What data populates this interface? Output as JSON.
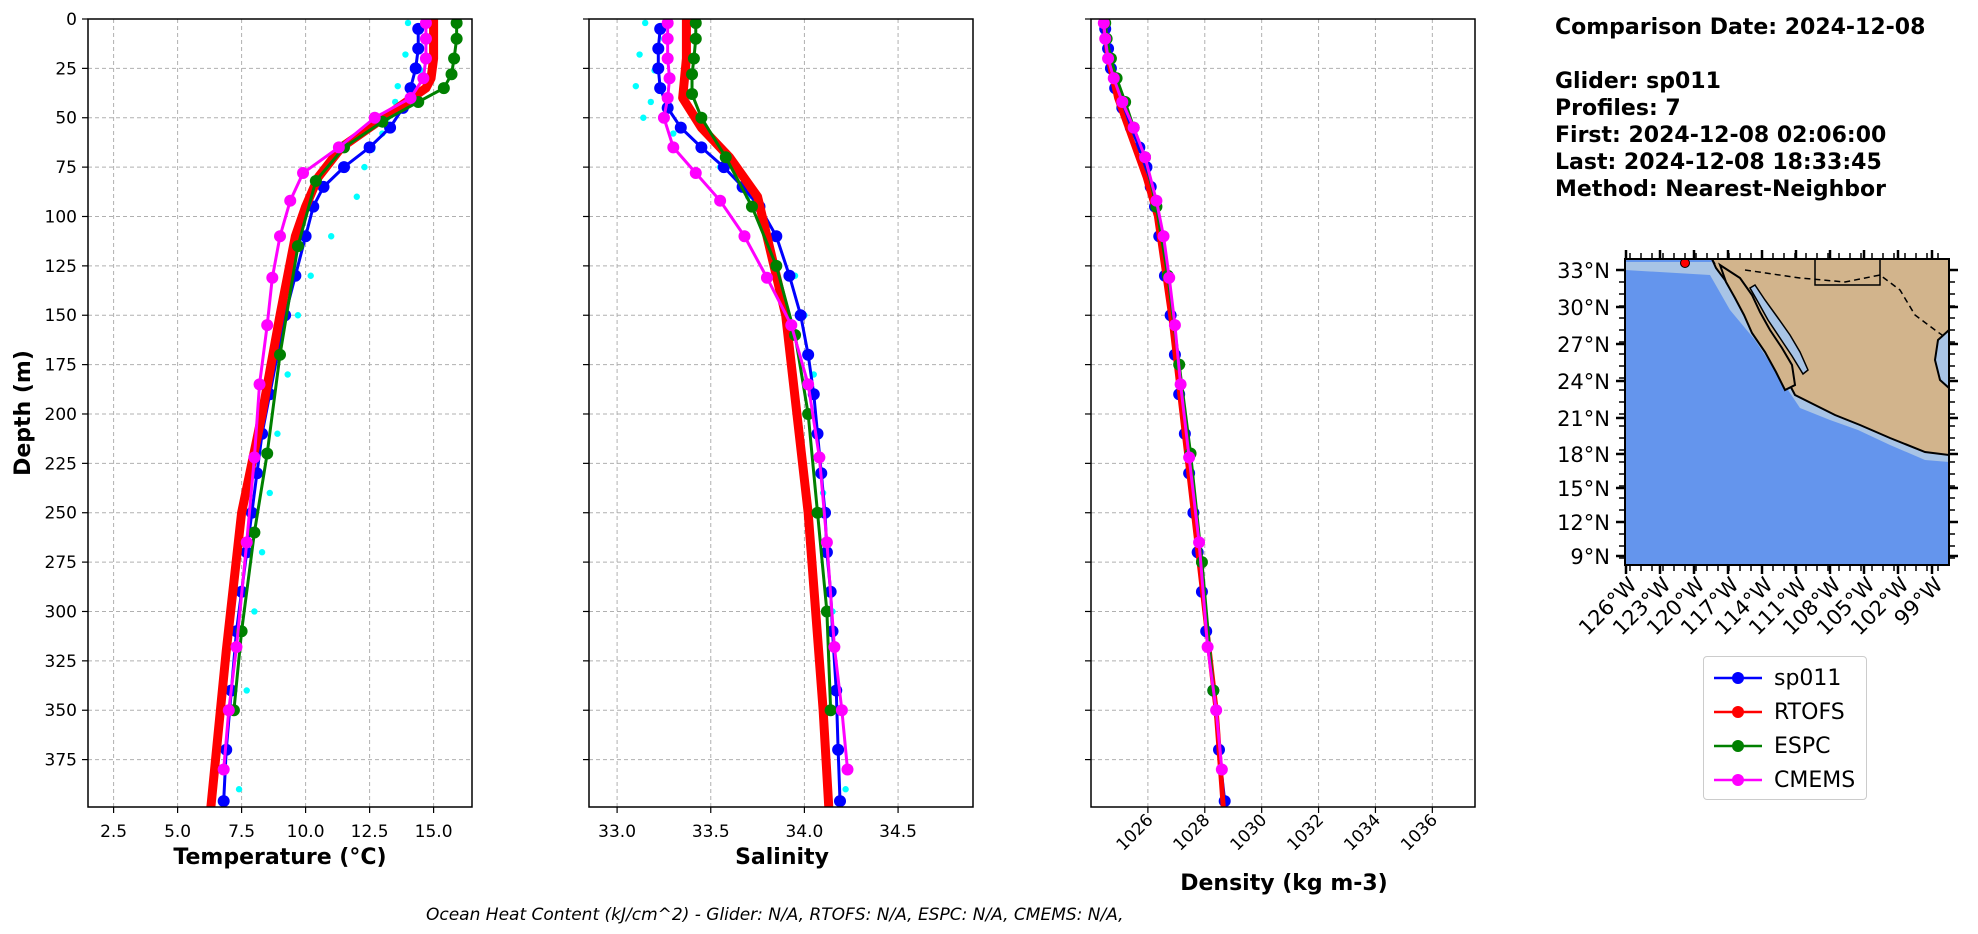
{
  "info": {
    "comparison_date": "Comparison Date: 2024-12-08",
    "glider": "Glider: sp011",
    "profiles": "Profiles: 7",
    "first": "First: 2024-12-08 02:06:00",
    "last": "Last: 2024-12-08 18:33:45",
    "method": "Method: Nearest-Neighbor"
  },
  "footer": "Ocean Heat Content (kJ/cm^2) - Glider: N/A,  RTOFS: N/A,  ESPC: N/A,  CMEMS: N/A,",
  "legend": [
    {
      "name": "sp011",
      "color": "#0000ff"
    },
    {
      "name": "RTOFS",
      "color": "#ff0000"
    },
    {
      "name": "ESPC",
      "color": "#008000"
    },
    {
      "name": "CMEMS",
      "color": "#ff00ff"
    }
  ],
  "colors": {
    "glider": "#0000ff",
    "glider_raw": "#00ffff",
    "rtofs": "#ff0000",
    "espc": "#008000",
    "cmems": "#ff00ff",
    "ocean": "#6495ed",
    "land": "#d2b48c",
    "shelf": "#a8c4e6"
  },
  "chart_data": [
    {
      "type": "line",
      "xlabel": "Temperature (°C)",
      "ylabel": "Depth (m)",
      "xlim": [
        1.5,
        16.5
      ],
      "ylim": [
        399,
        0
      ],
      "xticks": [
        2.5,
        5.0,
        7.5,
        10.0,
        12.5,
        15.0
      ],
      "xtick_labels": [
        "2.5",
        "5.0",
        "7.5",
        "10.0",
        "12.5",
        "15.0"
      ],
      "yticks": [
        0,
        25,
        50,
        75,
        100,
        125,
        150,
        175,
        200,
        225,
        250,
        275,
        300,
        325,
        350,
        375
      ],
      "grid": true,
      "series": [
        {
          "name": "sp011-raw",
          "color": "#00ffff",
          "style": "dots",
          "x": [
            14.0,
            14.7,
            13.9,
            14.5,
            13.6,
            13.5,
            13.2,
            13.0,
            12.6,
            12.3,
            12.0,
            11.0,
            10.2,
            9.7,
            9.3,
            8.9,
            8.6,
            8.3,
            8.0,
            7.7,
            7.4
          ],
          "y": [
            2,
            10,
            18,
            26,
            34,
            42,
            50,
            58,
            66,
            75,
            90,
            110,
            130,
            150,
            180,
            210,
            240,
            270,
            300,
            340,
            390
          ]
        },
        {
          "name": "sp011",
          "color": "#0000ff",
          "width": 3,
          "marker": 6,
          "x": [
            14.4,
            14.4,
            14.3,
            14.1,
            13.8,
            13.3,
            12.5,
            11.5,
            10.7,
            10.3,
            10.0,
            9.6,
            9.2,
            8.9,
            8.6,
            8.3,
            8.1,
            7.9,
            7.7,
            7.5,
            7.3,
            7.1,
            6.9,
            6.8
          ],
          "y": [
            5,
            15,
            25,
            35,
            45,
            55,
            65,
            75,
            85,
            95,
            110,
            130,
            150,
            170,
            190,
            210,
            230,
            250,
            270,
            290,
            310,
            340,
            370,
            396
          ]
        },
        {
          "name": "RTOFS",
          "color": "#ff0000",
          "width": 9,
          "marker": 0,
          "x": [
            15.0,
            15.0,
            14.9,
            14.7,
            13.6,
            12.5,
            11.4,
            10.5,
            10.0,
            9.6,
            9.0,
            8.3,
            7.5,
            6.9,
            6.3
          ],
          "y": [
            0,
            20,
            30,
            35,
            45,
            55,
            65,
            80,
            95,
            110,
            150,
            200,
            250,
            320,
            399
          ]
        },
        {
          "name": "ESPC",
          "color": "#008000",
          "width": 3,
          "marker": 6,
          "x": [
            15.9,
            15.9,
            15.8,
            15.7,
            15.4,
            14.4,
            13.0,
            11.5,
            10.4,
            9.7,
            9.0,
            8.5,
            8.0,
            7.5,
            7.2
          ],
          "y": [
            2,
            10,
            20,
            28,
            35,
            42,
            52,
            65,
            82,
            115,
            170,
            220,
            260,
            310,
            350
          ]
        },
        {
          "name": "CMEMS",
          "color": "#ff00ff",
          "width": 3,
          "marker": 6,
          "x": [
            14.7,
            14.7,
            14.7,
            14.6,
            14.1,
            12.7,
            11.3,
            9.9,
            9.4,
            9.0,
            8.7,
            8.5,
            8.2,
            8.0,
            7.7,
            7.3,
            7.0,
            6.8
          ],
          "y": [
            2,
            10,
            20,
            30,
            40,
            50,
            65,
            78,
            92,
            110,
            131,
            155,
            185,
            222,
            265,
            318,
            350,
            380
          ]
        }
      ]
    },
    {
      "type": "line",
      "xlabel": "Salinity",
      "ylabel": "",
      "xlim": [
        32.85,
        34.9
      ],
      "ylim": [
        399,
        0
      ],
      "xticks": [
        33.0,
        33.5,
        34.0,
        34.5
      ],
      "xtick_labels": [
        "33.0",
        "33.5",
        "34.0",
        "34.5"
      ],
      "yticks": [
        0,
        25,
        50,
        75,
        100,
        125,
        150,
        175,
        200,
        225,
        250,
        275,
        300,
        325,
        350,
        375
      ],
      "grid": true,
      "series": [
        {
          "name": "sp011-raw",
          "color": "#00ffff",
          "style": "dots",
          "x": [
            33.15,
            33.25,
            33.12,
            33.2,
            33.1,
            33.18,
            33.14,
            33.3,
            33.45,
            33.55,
            33.7,
            33.85,
            33.95,
            34.0,
            34.05,
            34.08,
            34.1,
            34.12,
            34.15,
            34.18,
            34.22
          ],
          "y": [
            2,
            10,
            18,
            26,
            34,
            42,
            50,
            58,
            66,
            75,
            90,
            110,
            130,
            150,
            180,
            210,
            240,
            270,
            300,
            340,
            390
          ]
        },
        {
          "name": "sp011",
          "color": "#0000ff",
          "width": 3,
          "marker": 6,
          "x": [
            33.23,
            33.22,
            33.22,
            33.23,
            33.27,
            33.34,
            33.45,
            33.57,
            33.67,
            33.76,
            33.85,
            33.92,
            33.98,
            34.02,
            34.05,
            34.07,
            34.09,
            34.11,
            34.12,
            34.14,
            34.15,
            34.17,
            34.18,
            34.19
          ],
          "y": [
            5,
            15,
            25,
            35,
            45,
            55,
            65,
            75,
            85,
            95,
            110,
            130,
            150,
            170,
            190,
            210,
            230,
            250,
            270,
            290,
            310,
            340,
            370,
            396
          ]
        },
        {
          "name": "RTOFS",
          "color": "#ff0000",
          "width": 9,
          "marker": 0,
          "x": [
            33.37,
            33.37,
            33.36,
            33.35,
            33.45,
            33.6,
            33.75,
            33.9,
            33.96,
            34.02,
            34.06,
            34.1,
            34.13
          ],
          "y": [
            0,
            20,
            30,
            40,
            55,
            70,
            90,
            150,
            200,
            250,
            300,
            350,
            399
          ]
        },
        {
          "name": "ESPC",
          "color": "#008000",
          "width": 3,
          "marker": 6,
          "x": [
            33.42,
            33.42,
            33.41,
            33.4,
            33.4,
            33.45,
            33.58,
            33.72,
            33.85,
            33.95,
            34.02,
            34.07,
            34.12,
            34.14
          ],
          "y": [
            2,
            10,
            20,
            28,
            38,
            50,
            70,
            95,
            125,
            160,
            200,
            250,
            300,
            350
          ]
        },
        {
          "name": "CMEMS",
          "color": "#ff00ff",
          "width": 3,
          "marker": 6,
          "x": [
            33.27,
            33.27,
            33.27,
            33.28,
            33.27,
            33.25,
            33.3,
            33.42,
            33.55,
            33.68,
            33.8,
            33.93,
            34.02,
            34.08,
            34.12,
            34.16,
            34.2,
            34.23
          ],
          "y": [
            2,
            10,
            20,
            30,
            40,
            50,
            65,
            78,
            92,
            110,
            131,
            155,
            185,
            222,
            265,
            318,
            350,
            380
          ]
        }
      ]
    },
    {
      "type": "line",
      "xlabel": "Density (kg m-3)",
      "ylabel": "",
      "xlim": [
        1024.0,
        1037.5
      ],
      "ylim": [
        399,
        0
      ],
      "xticks": [
        1026,
        1028,
        1030,
        1032,
        1034,
        1036
      ],
      "xtick_labels": [
        "1026",
        "1028",
        "1030",
        "1032",
        "1034",
        "1036"
      ],
      "yticks": [
        0,
        25,
        50,
        75,
        100,
        125,
        150,
        175,
        200,
        225,
        250,
        275,
        300,
        325,
        350,
        375
      ],
      "grid": true,
      "series": [
        {
          "name": "sp011",
          "color": "#0000ff",
          "width": 3,
          "marker": 6,
          "x": [
            1024.5,
            1024.6,
            1024.7,
            1024.85,
            1025.1,
            1025.4,
            1025.7,
            1025.95,
            1026.1,
            1026.25,
            1026.4,
            1026.6,
            1026.8,
            1026.95,
            1027.1,
            1027.3,
            1027.45,
            1027.6,
            1027.75,
            1027.9,
            1028.05,
            1028.3,
            1028.5,
            1028.7
          ],
          "y": [
            5,
            15,
            25,
            35,
            45,
            55,
            65,
            75,
            85,
            95,
            110,
            130,
            150,
            170,
            190,
            210,
            230,
            250,
            270,
            290,
            310,
            340,
            370,
            396
          ]
        },
        {
          "name": "RTOFS",
          "color": "#ff0000",
          "width": 5,
          "marker": 0,
          "x": [
            1024.45,
            1024.6,
            1024.9,
            1025.4,
            1025.9,
            1026.3,
            1026.8,
            1027.2,
            1027.6,
            1028.0,
            1028.4,
            1028.65
          ],
          "y": [
            0,
            20,
            40,
            60,
            80,
            100,
            150,
            200,
            250,
            300,
            350,
            399
          ]
        },
        {
          "name": "ESPC",
          "color": "#008000",
          "width": 3,
          "marker": 6,
          "x": [
            1024.5,
            1024.55,
            1024.7,
            1024.9,
            1025.2,
            1025.5,
            1025.9,
            1026.3,
            1026.7,
            1027.1,
            1027.5,
            1027.9,
            1028.3
          ],
          "y": [
            2,
            10,
            20,
            30,
            42,
            55,
            70,
            95,
            130,
            175,
            220,
            275,
            340
          ]
        },
        {
          "name": "CMEMS",
          "color": "#ff00ff",
          "width": 3,
          "marker": 6,
          "x": [
            1024.45,
            1024.5,
            1024.6,
            1024.8,
            1025.1,
            1025.5,
            1025.9,
            1026.3,
            1026.55,
            1026.75,
            1026.95,
            1027.15,
            1027.45,
            1027.8,
            1028.1,
            1028.4,
            1028.6
          ],
          "y": [
            2,
            10,
            20,
            30,
            42,
            55,
            70,
            92,
            110,
            131,
            155,
            185,
            222,
            265,
            318,
            350,
            380
          ]
        }
      ]
    },
    {
      "type": "map",
      "lat_ticks": [
        "33°N",
        "30°N",
        "27°N",
        "24°N",
        "21°N",
        "18°N",
        "15°N",
        "12°N",
        "9°N"
      ],
      "lon_ticks": [
        "126°W",
        "123°W",
        "120°W",
        "117°W",
        "114°W",
        "111°W",
        "108°W",
        "105°W",
        "102°W",
        "99°W"
      ],
      "glider_position": {
        "lon": -122.4,
        "lat": 33.4
      }
    }
  ]
}
